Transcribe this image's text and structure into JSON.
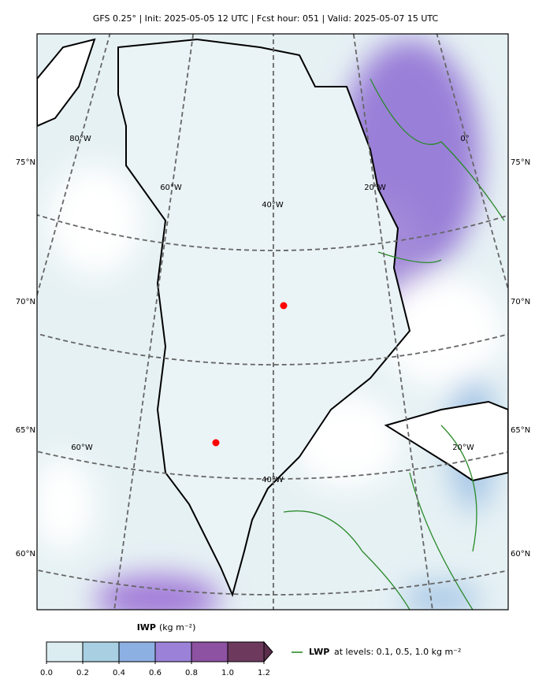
{
  "title": "GFS 0.25° | Init: 2025-05-05 12 UTC | Fcst hour: 051 | Valid: 2025-05-07 15 UTC",
  "map": {
    "lat_labels": [
      "75°N",
      "70°N",
      "65°N",
      "60°N"
    ],
    "lon_labels_top": [
      "80°W",
      "60°W",
      "40°W",
      "20°W",
      "0°"
    ],
    "lon_labels_bottom": [
      "60°W",
      "40°W",
      "20°W"
    ]
  },
  "colorbar": {
    "label": "IWP",
    "units": "(kg m⁻²)",
    "ticks": [
      {
        "value": 0,
        "label": "0.0"
      },
      0.2,
      0.4,
      0.6,
      0.8,
      {
        "value": 1,
        "label": "1.0"
      },
      1.2
    ],
    "colors": [
      "#dcedf1",
      "#a8d0e2",
      "#8db0e3",
      "#9b82d8",
      "#8d52a1",
      "#6d3a5e"
    ],
    "extend_color": "#5b2e4b"
  },
  "legend": {
    "name": "LWP",
    "text": "at levels: 0.1, 0.5, 1.0  kg m⁻²",
    "color": "#2a8a2a"
  }
}
